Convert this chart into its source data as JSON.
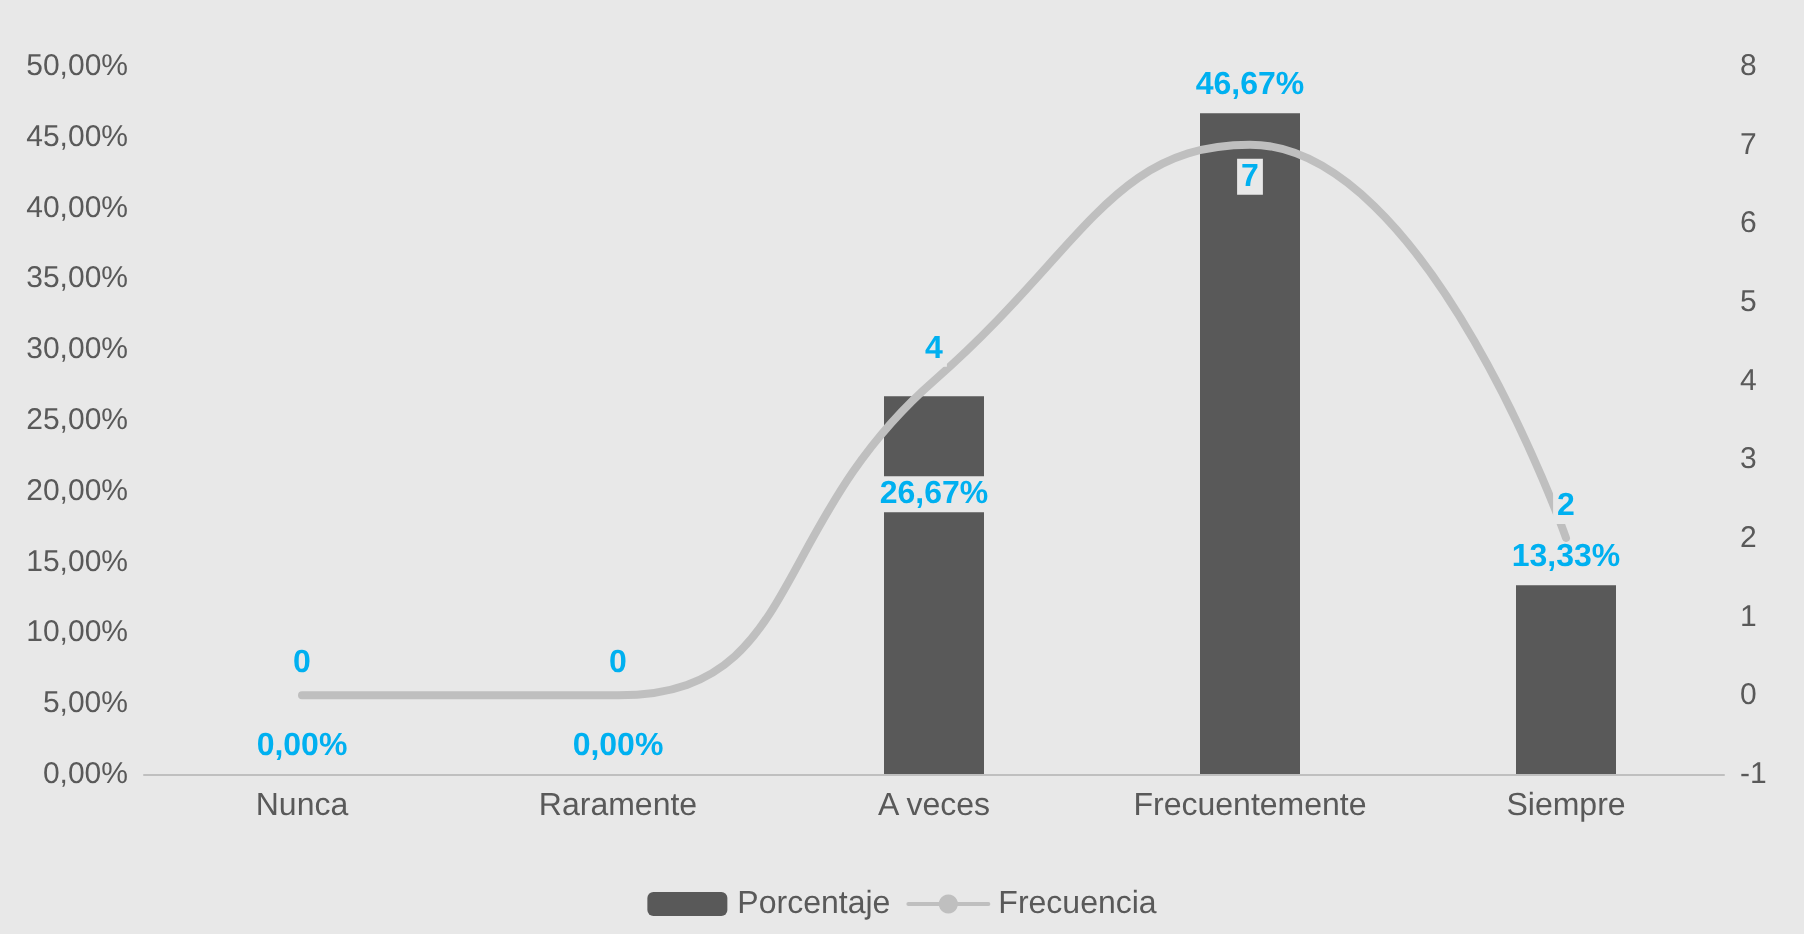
{
  "chart_data": {
    "type": "bar",
    "categories": [
      "Nunca",
      "Raramente",
      "A veces",
      "Frecuentemente",
      "Siempre"
    ],
    "series": [
      {
        "name": "Porcentaje",
        "color": "#595959",
        "values": [
          0,
          0,
          26.67,
          46.67,
          13.33
        ],
        "value_labels": [
          "0,00%",
          "0,00%",
          "26,67%",
          "46,67%",
          "13,33%"
        ]
      },
      {
        "name": "Frecuencia",
        "type": "line",
        "axis": "y2",
        "color": "#bfbfbf",
        "values": [
          0,
          0,
          4,
          7,
          2
        ],
        "value_labels": [
          "0",
          "0",
          "4",
          "7",
          "2"
        ]
      }
    ],
    "ylim": [
      0,
      50
    ],
    "yticks": [
      {
        "value": 0,
        "label": "0,00%"
      },
      {
        "value": 5,
        "label": "5,00%"
      },
      {
        "value": 10,
        "label": "10,00%"
      },
      {
        "value": 15,
        "label": "15,00%"
      },
      {
        "value": 20,
        "label": "20,00%"
      },
      {
        "value": 25,
        "label": "25,00%"
      },
      {
        "value": 30,
        "label": "30,00%"
      },
      {
        "value": 35,
        "label": "35,00%"
      },
      {
        "value": 40,
        "label": "40,00%"
      },
      {
        "value": 45,
        "label": "45,00%"
      },
      {
        "value": 50,
        "label": "50,00%"
      }
    ],
    "y2lim": [
      -1,
      8
    ],
    "y2ticks": [
      -1,
      0,
      1,
      2,
      3,
      4,
      5,
      6,
      7,
      8
    ],
    "grid": false,
    "legend": "bottom",
    "marker": "none",
    "line_style": "solid"
  }
}
